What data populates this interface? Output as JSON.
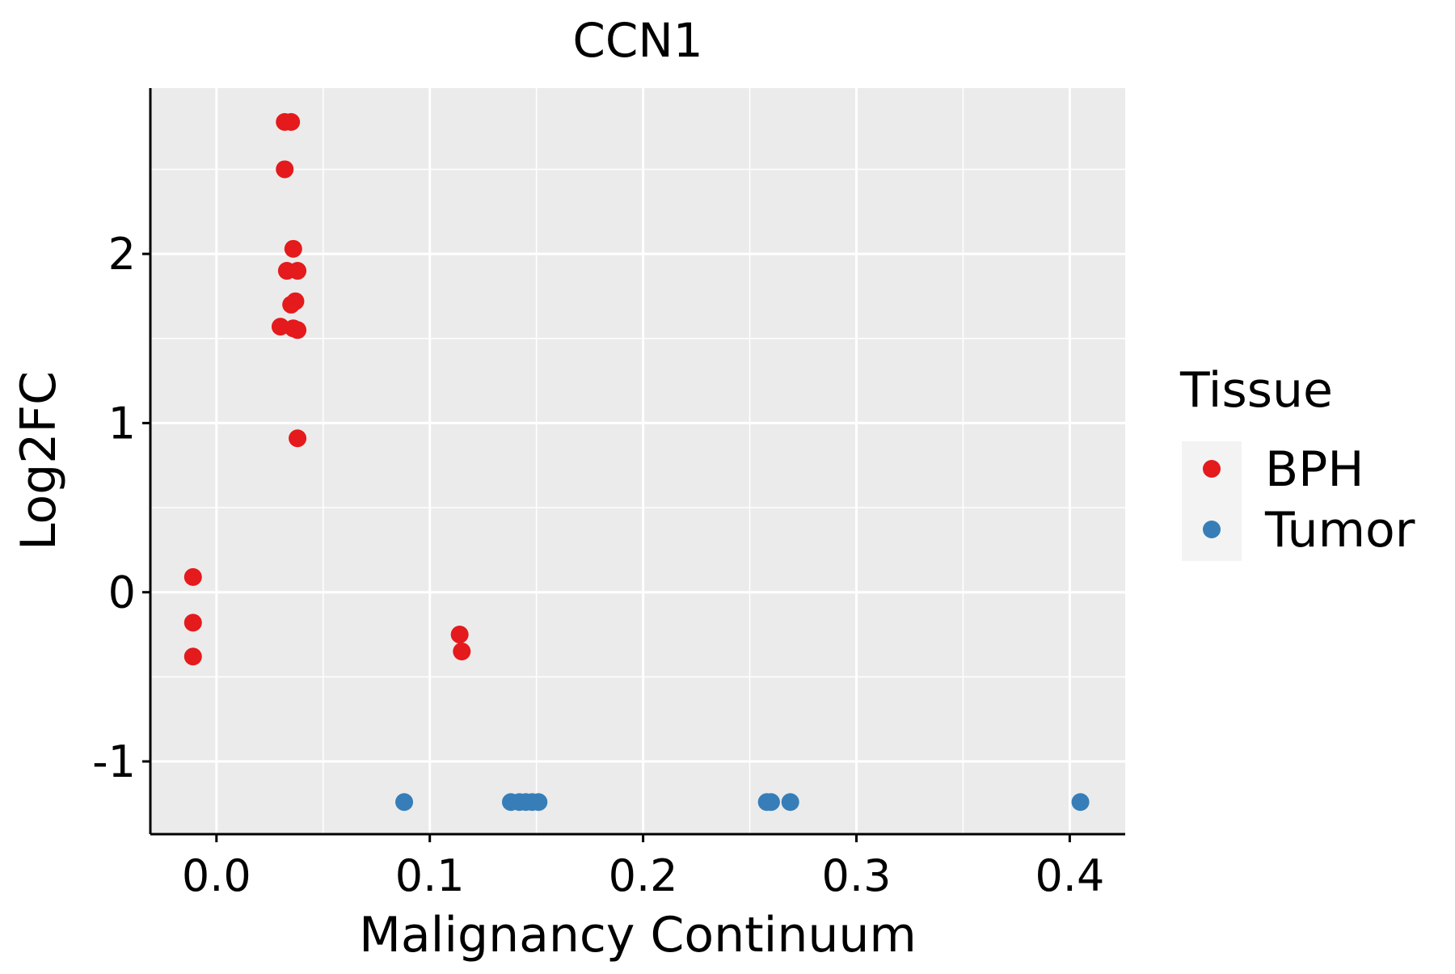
{
  "chart_data": {
    "type": "scatter",
    "title": "CCN1",
    "xlabel": "Malignancy Continuum",
    "ylabel": "Log2FC",
    "xlim": [
      -0.031,
      0.426
    ],
    "ylim": [
      -1.43,
      2.98
    ],
    "xticks": [
      0.0,
      0.1,
      0.2,
      0.3,
      0.4
    ],
    "xtick_labels": [
      "0.0",
      "0.1",
      "0.2",
      "0.3",
      "0.4"
    ],
    "yticks": [
      -1,
      0,
      1,
      2
    ],
    "ytick_labels": [
      "-1",
      "0",
      "1",
      "2"
    ],
    "x_minor_gridlines": [
      0.05,
      0.15,
      0.25,
      0.35
    ],
    "y_minor_gridlines": [
      -0.5,
      0.5,
      1.5,
      2.5
    ],
    "grid": true,
    "legend": {
      "title": "Tissue",
      "placement": "right",
      "entries": [
        {
          "label": "BPH",
          "color": "#E41A1C"
        },
        {
          "label": "Tumor",
          "color": "#377EB8"
        }
      ]
    },
    "series": [
      {
        "name": "BPH",
        "color": "#E41A1C",
        "points": [
          {
            "x": 0.032,
            "y": 2.78
          },
          {
            "x": 0.035,
            "y": 2.78
          },
          {
            "x": 0.032,
            "y": 2.5
          },
          {
            "x": 0.036,
            "y": 2.03
          },
          {
            "x": 0.033,
            "y": 1.9
          },
          {
            "x": 0.038,
            "y": 1.9
          },
          {
            "x": 0.035,
            "y": 1.7
          },
          {
            "x": 0.037,
            "y": 1.72
          },
          {
            "x": 0.03,
            "y": 1.57
          },
          {
            "x": 0.036,
            "y": 1.56
          },
          {
            "x": 0.038,
            "y": 1.55
          },
          {
            "x": 0.038,
            "y": 0.91
          },
          {
            "x": -0.011,
            "y": 0.09
          },
          {
            "x": -0.011,
            "y": -0.18
          },
          {
            "x": -0.011,
            "y": -0.38
          },
          {
            "x": 0.114,
            "y": -0.25
          },
          {
            "x": 0.115,
            "y": -0.35
          }
        ]
      },
      {
        "name": "Tumor",
        "color": "#377EB8",
        "points": [
          {
            "x": 0.088,
            "y": -1.24
          },
          {
            "x": 0.138,
            "y": -1.24
          },
          {
            "x": 0.142,
            "y": -1.24
          },
          {
            "x": 0.145,
            "y": -1.24
          },
          {
            "x": 0.148,
            "y": -1.24
          },
          {
            "x": 0.151,
            "y": -1.24
          },
          {
            "x": 0.258,
            "y": -1.24
          },
          {
            "x": 0.26,
            "y": -1.24
          },
          {
            "x": 0.269,
            "y": -1.24
          },
          {
            "x": 0.405,
            "y": -1.24
          }
        ]
      }
    ]
  },
  "colors": {
    "panel_background": "#EBEBEB",
    "gridline": "#FFFFFF",
    "axis_line": "#000000"
  }
}
